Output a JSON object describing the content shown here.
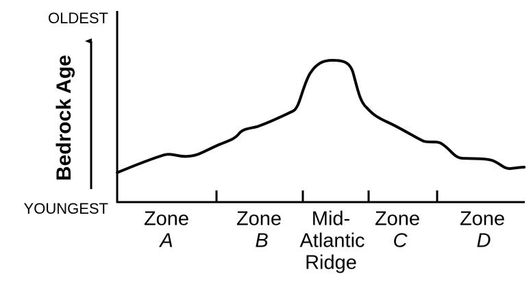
{
  "axis": {
    "top_label": "OLDEST",
    "bottom_label": "YOUNGEST",
    "title": "Bedrock Age"
  },
  "zones": [
    {
      "label": "Zone",
      "letter": "A"
    },
    {
      "label": "Zone",
      "letter": "B"
    },
    {
      "label": "Zone",
      "letter": "C"
    },
    {
      "label": "Zone",
      "letter": "D"
    }
  ],
  "ridge": {
    "lines": [
      "Mid-",
      "Atlantic",
      "Ridge"
    ]
  }
}
